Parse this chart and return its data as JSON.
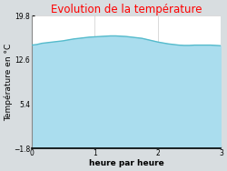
{
  "title": "Evolution de la température",
  "title_color": "#ff0000",
  "xlabel": "heure par heure",
  "ylabel": "Température en °C",
  "ylim": [
    -1.8,
    19.8
  ],
  "xlim": [
    0,
    3
  ],
  "yticks": [
    -1.8,
    5.4,
    12.6,
    19.8
  ],
  "xticks": [
    0,
    1,
    2,
    3
  ],
  "figure_bg_color": "#d8dde0",
  "plot_bg_color": "#ffffff",
  "fill_color": "#aaddee",
  "line_color": "#55bbcc",
  "line_width": 1.0,
  "x_values": [
    0.0,
    0.083,
    0.167,
    0.25,
    0.333,
    0.417,
    0.5,
    0.583,
    0.667,
    0.75,
    0.833,
    0.917,
    1.0,
    1.083,
    1.167,
    1.25,
    1.333,
    1.417,
    1.5,
    1.583,
    1.667,
    1.75,
    1.833,
    1.917,
    2.0,
    2.083,
    2.167,
    2.25,
    2.333,
    2.417,
    2.5,
    2.583,
    2.667,
    2.75,
    2.833,
    2.917,
    3.0
  ],
  "y_values": [
    15.0,
    15.1,
    15.3,
    15.4,
    15.5,
    15.6,
    15.7,
    15.85,
    16.0,
    16.1,
    16.2,
    16.3,
    16.35,
    16.4,
    16.45,
    16.5,
    16.5,
    16.45,
    16.4,
    16.3,
    16.2,
    16.1,
    15.9,
    15.7,
    15.5,
    15.35,
    15.2,
    15.1,
    15.0,
    14.95,
    14.95,
    15.0,
    15.0,
    15.0,
    15.0,
    14.95,
    14.9
  ],
  "grid_color": "#cccccc",
  "tick_fontsize": 5.5,
  "label_fontsize": 6.5,
  "title_fontsize": 8.5
}
